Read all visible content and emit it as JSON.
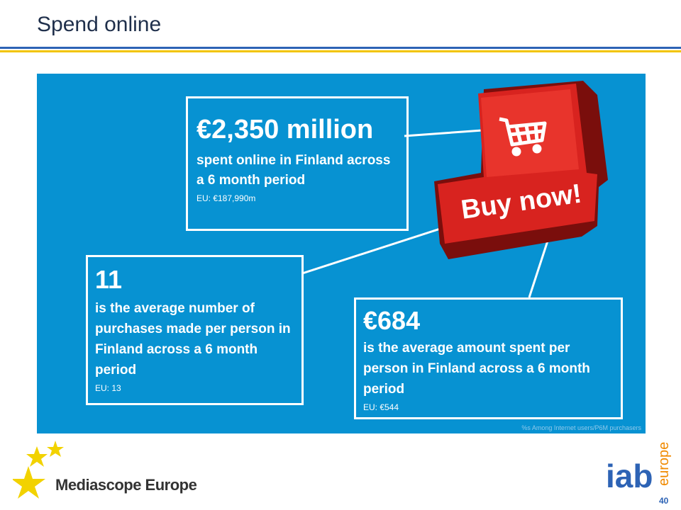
{
  "header": {
    "title": "Spend online"
  },
  "stats": [
    {
      "value": "€2,350 million",
      "description": "spent online in Finland across a 6 month period",
      "eu": "EU: €187,990m"
    },
    {
      "value": "11",
      "description": "is the average number of purchases made per person in Finland across a 6 month period",
      "eu": "EU: 13"
    },
    {
      "value": "€684",
      "description": "is the average amount spent per person in Finland across a 6 month period",
      "eu": "EU: €544"
    }
  ],
  "key": {
    "label": "Buy now!"
  },
  "footnote": "%s Among Internet users/P6M purchasers",
  "footer": {
    "logo_left": "Mediascope Europe",
    "logo_right_main": "iab",
    "logo_right_sub": "europe",
    "page_number": "40"
  },
  "colors": {
    "panel": "#0792d2",
    "key_red": "#d8231f",
    "title": "#1f2f4b",
    "rule_blue": "#2d63b5",
    "rule_yellow": "#f2c400"
  }
}
